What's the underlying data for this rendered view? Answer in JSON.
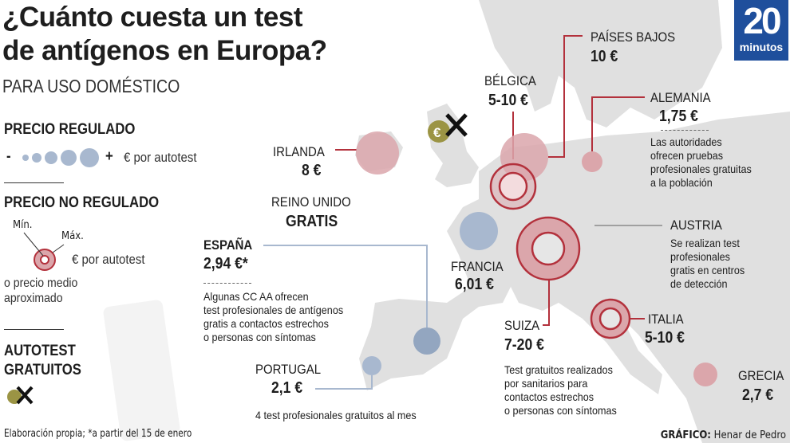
{
  "title": {
    "line1": "¿Cuánto cuesta un test",
    "line2": "de antígenos en Europa?",
    "subtitle": "PARA USO DOMÉSTICO"
  },
  "logo": {
    "number": "20",
    "word": "minutos"
  },
  "legend": {
    "regulated": {
      "title": "PRECIO REGULADO",
      "minus": "-",
      "plus": "+",
      "unit": "€ por autotest"
    },
    "unregulated": {
      "title": "PRECIO NO REGULADO",
      "min": "Mín.",
      "max": "Máx.",
      "unit": "€ por autotest",
      "note_line1": "o precio medio",
      "note_line2": "aproximado"
    },
    "free": {
      "title_line1": "AUTOTEST",
      "title_line2": "GRATUITOS"
    }
  },
  "countries": {
    "irlanda": {
      "name": "IRLANDA",
      "price": "8 €"
    },
    "reino_unido": {
      "name": "REINO UNIDO",
      "price": "GRATIS"
    },
    "belgica": {
      "name": "BÉLGICA",
      "price": "5-10 €"
    },
    "paises_bajos": {
      "name": "PAÍSES BAJOS",
      "price": "10 €"
    },
    "alemania": {
      "name": "ALEMANIA",
      "price": "1,75 €",
      "note": "Las autoridades\nofrecen pruebas\nprofesionales gratuitas\na la población"
    },
    "austria": {
      "name": "AUSTRIA",
      "note": "Se realizan test\nprofesionales\ngratis en centros\nde detección"
    },
    "francia": {
      "name": "FRANCIA",
      "price": "6,01 €"
    },
    "espana": {
      "name": "ESPAÑA",
      "price": "2,94 €*",
      "note": "Algunas CC AA ofrecen\ntest profesionales de antígenos\ngratis a contactos estrechos\no personas con síntomas"
    },
    "portugal": {
      "name": "PORTUGAL",
      "price": "2,1 €",
      "note": "4 test profesionales gratuitos al mes"
    },
    "suiza": {
      "name": "SUIZA",
      "price": "7-20 €",
      "note": "Test gratuitos realizados\npor sanitarios para\ncontactos estrechos\no personas con síntomas"
    },
    "italia": {
      "name": "ITALIA",
      "price": "5-10 €"
    },
    "grecia": {
      "name": "GRECIA",
      "price": "2,7 €"
    }
  },
  "footer": {
    "source": "Elaboración propia; *a partir del 15 de enero",
    "credit_label": "GRÁFICO:",
    "credit_name": "Henar de Pedro"
  },
  "colors": {
    "map": "#dedede",
    "regulated": "#a8b8cf",
    "unregulated_fill": "#dba6ab",
    "unregulated_stroke": "#b3313c",
    "free_coin": "#9b9444",
    "logo": "#1f4f9c"
  }
}
